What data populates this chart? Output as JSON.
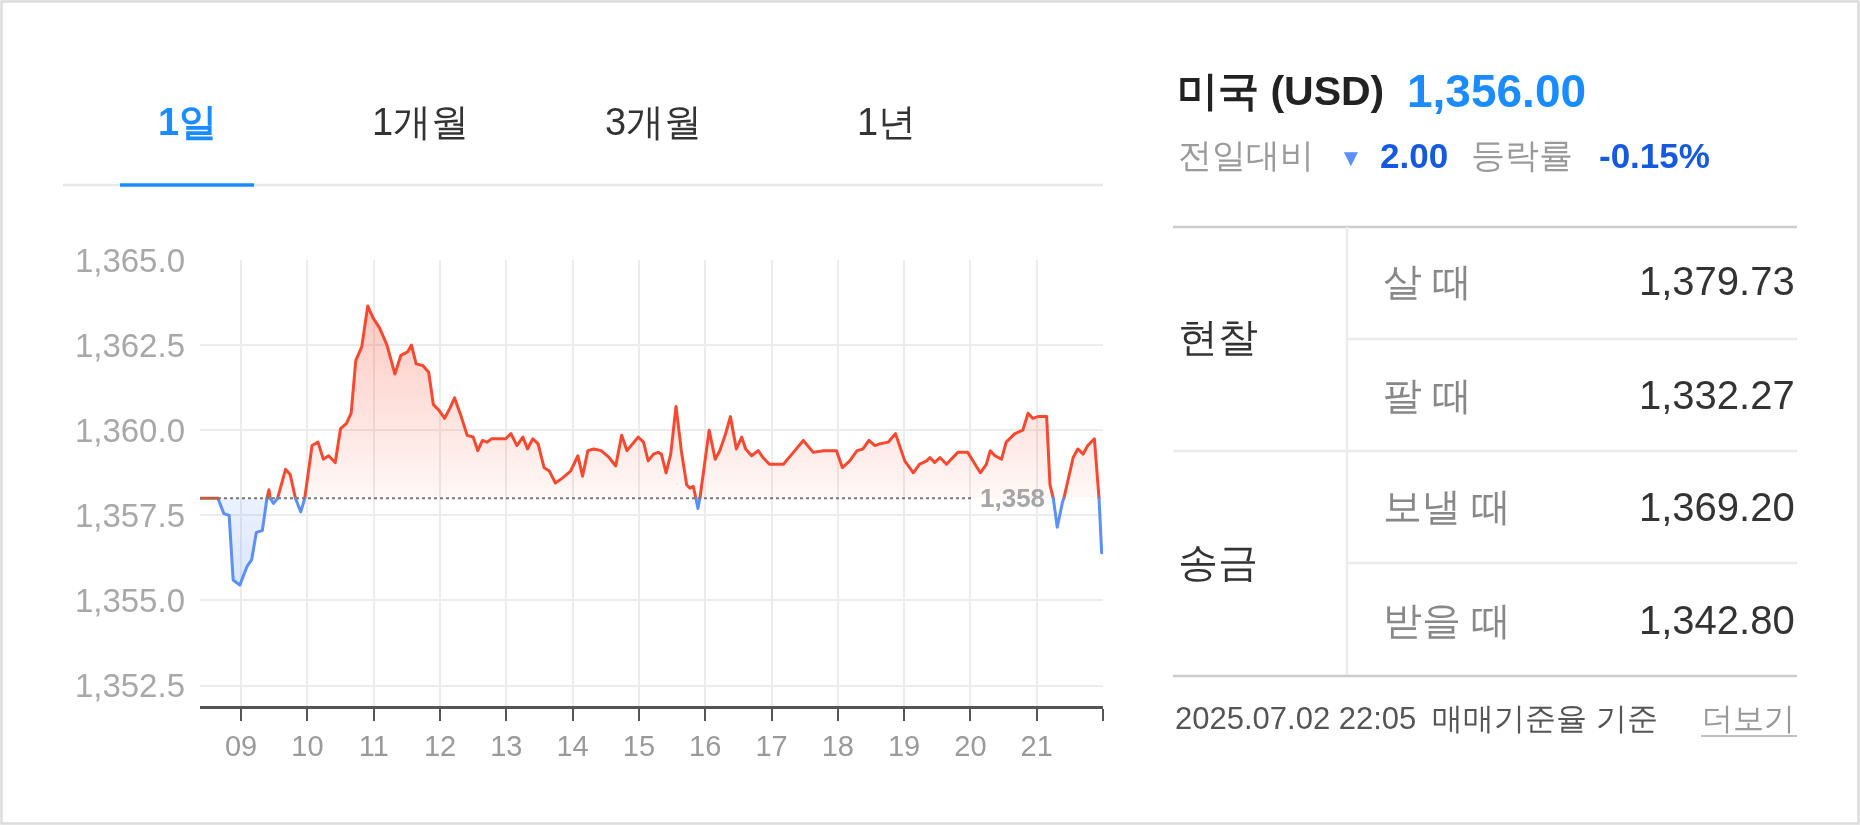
{
  "chart_data": [
    {
      "type": "area",
      "annotations": [
        "1일",
        "1개월",
        "3개월",
        "1년"
      ],
      "series": [
        {
          "type": "area",
          "color": "#f7492f",
          "x": [
            9.39,
            9.42,
            9.44,
            9.49,
            9.55,
            9.67,
            9.74,
            9.82,
            9.9,
            9.96,
            10.07,
            10.16,
            10.24,
            10.32,
            10.42,
            10.5,
            10.59,
            10.66,
            10.73,
            10.82,
            10.91,
            10.99,
            11.09,
            11.2,
            11.32,
            11.41,
            11.51,
            11.57,
            11.64,
            11.74,
            11.83,
            11.9,
            11.98,
            12.07,
            12.15,
            12.22,
            12.32,
            12.41,
            12.5,
            12.57,
            12.64,
            12.71,
            12.78,
            12.9,
            12.99,
            13.07,
            13.16,
            13.25,
            13.32,
            13.4,
            13.48,
            13.57,
            13.65,
            13.74,
            13.85,
            13.97,
            14.08,
            14.15,
            14.23,
            14.32,
            14.43,
            14.55,
            14.65,
            14.74,
            14.82,
            14.99,
            15.07,
            15.14,
            15.22,
            15.29,
            15.34,
            15.41,
            15.48,
            15.56,
            15.64,
            15.72,
            15.77,
            15.82,
            15.86,
            15.89,
            15.92,
            16.06,
            16.15,
            16.22,
            16.3,
            16.38,
            16.47,
            16.55,
            16.61,
            16.7,
            16.8,
            16.87,
            16.97,
            17.18,
            17.33,
            17.48,
            17.63,
            17.78,
            17.98,
            18.07,
            18.18,
            18.29,
            18.38,
            18.47,
            18.56,
            18.63,
            18.76,
            18.87,
            19.01,
            19.14,
            19.23,
            19.34,
            19.39,
            19.46,
            19.54,
            19.64,
            19.81,
            19.96,
            20.07,
            20.15,
            20.24,
            20.3,
            20.37,
            20.47,
            20.54,
            20.67,
            20.79,
            20.87,
            20.94,
            21.02,
            21.15,
            21.2,
            21.25,
            21.31,
            21.41,
            21.55,
            21.62,
            21.7,
            21.77,
            21.87,
            21.94
          ],
          "values": [
            1358,
            1358.25,
            1358,
            null,
            1358,
            1358.85,
            1358.7,
            1358,
            null,
            1358,
            1359.55,
            1359.65,
            1359.15,
            1359.25,
            1359.05,
            1360.05,
            1360.2,
            1360.5,
            1362.05,
            1362.45,
            1363.65,
            1363.3,
            1363.0,
            1362.5,
            1361.65,
            1362.2,
            1362.3,
            1362.5,
            1361.95,
            1361.9,
            1361.7,
            1360.75,
            1360.6,
            1360.35,
            1360.65,
            1360.95,
            1360.4,
            1359.85,
            1359.8,
            1359.4,
            1359.7,
            1359.65,
            1359.75,
            1359.75,
            1359.75,
            1359.9,
            1359.55,
            1359.8,
            1359.45,
            1359.75,
            1359.6,
            1358.9,
            1358.8,
            1358.45,
            1358.6,
            1358.8,
            1359.25,
            1358.65,
            1359.4,
            1359.45,
            1359.4,
            1359.2,
            1358.95,
            1359.85,
            1359.4,
            1359.8,
            1359.65,
            1359.1,
            1359.3,
            1359.35,
            1359.3,
            1358.75,
            1359.3,
            1360.7,
            1359.4,
            1358.4,
            1358.3,
            1358.35,
            1358,
            null,
            1358,
            1360,
            1359.15,
            1359.4,
            1359.85,
            1360.4,
            1359.45,
            1359.8,
            1359.45,
            1359.25,
            1359.4,
            1359.2,
            1359,
            1359,
            1359.35,
            1359.7,
            1359.35,
            1359.4,
            1359.4,
            1358.9,
            1359.1,
            1359.4,
            1359.45,
            1359.7,
            1359.55,
            1359.6,
            1359.65,
            1359.9,
            1359.1,
            1358.75,
            1359,
            1359.1,
            1359.2,
            1359.05,
            1359.2,
            1359,
            1359.35,
            1359.35,
            1359,
            1358.75,
            1359,
            1359.4,
            1359.25,
            1359.15,
            1359.65,
            1359.9,
            1360,
            1360.5,
            1360.35,
            1360.4,
            1360.4,
            1358.4,
            1358,
            null,
            1358,
            1359.2,
            1359.45,
            1359.3,
            1359.55,
            1359.75,
            1358
          ]
        },
        {
          "type": "area",
          "color": "#5b8ff9",
          "x": [
            8.65,
            8.74,
            8.82,
            8.88,
            8.98,
            9.09,
            9.16,
            9.23,
            9.32,
            9.39
          ],
          "values": [
            1358,
            1357.55,
            1357.5,
            1355.6,
            1355.45,
            1356,
            1356.2,
            1357,
            1357.05,
            1358
          ]
        },
        {
          "type": "line",
          "color": "#f7492f",
          "x": [
            8.38,
            8.65
          ],
          "values": [
            1358,
            1358
          ]
        },
        {
          "type": "line",
          "color": "#5b8ff9",
          "x": [
            9.44,
            9.49,
            9.55,
            9.7,
            9.82,
            9.9,
            9.96,
            12,
            15.86,
            15.89,
            15.92,
            18,
            21.25,
            21.31,
            21.39,
            21.41,
            21.6,
            21.94,
            21.98
          ],
          "values": [
            1358,
            1357.85,
            1358,
            null,
            1358,
            1357.6,
            1358,
            null,
            1358,
            1357.7,
            1358,
            null,
            1358,
            1357.15,
            1357.9,
            1358,
            null,
            1358,
            1356.4
          ]
        }
      ],
      "xlim": [
        8.38,
        22.0
      ],
      "xticks": [
        {
          "value": 9,
          "label": "09"
        },
        10,
        11,
        12,
        13,
        14,
        15,
        16,
        17,
        18,
        19,
        20,
        21,
        {
          "value": 22,
          "label": null
        }
      ],
      "ylim": [
        1351.9,
        1365.0
      ],
      "yticks": [
        {
          "value": 1352.5,
          "label": "1,352.5"
        },
        {
          "value": 1355,
          "label": "1,355.0"
        },
        {
          "value": 1357.5,
          "label": "1,357.5"
        },
        {
          "value": 1360,
          "label": "1,360.0"
        },
        {
          "value": 1362.5,
          "label": "1,362.5"
        },
        {
          "value": 1365,
          "label": "1,365.0"
        }
      ],
      "grid": true,
      "ref_lines": [
        {
          "axis": "y",
          "value": 1358,
          "label": "1,358",
          "line_style": "dotted",
          "color": "#777777"
        }
      ]
    },
    {
      "type": "other",
      "title": "미국 (USD)",
      "annotations": [
        "1,356.00",
        "전일대비",
        "▼",
        "2.00",
        "등락률",
        "-0.15%",
        "현찰",
        "살 때",
        "1,379.73",
        "팔 때",
        "1,332.27",
        "송금",
        "보낼 때",
        "1,369.20",
        "받을 때",
        "1,342.80",
        "2025.07.02 22:05",
        "매매기준율 기준",
        "더보기"
      ]
    }
  ]
}
